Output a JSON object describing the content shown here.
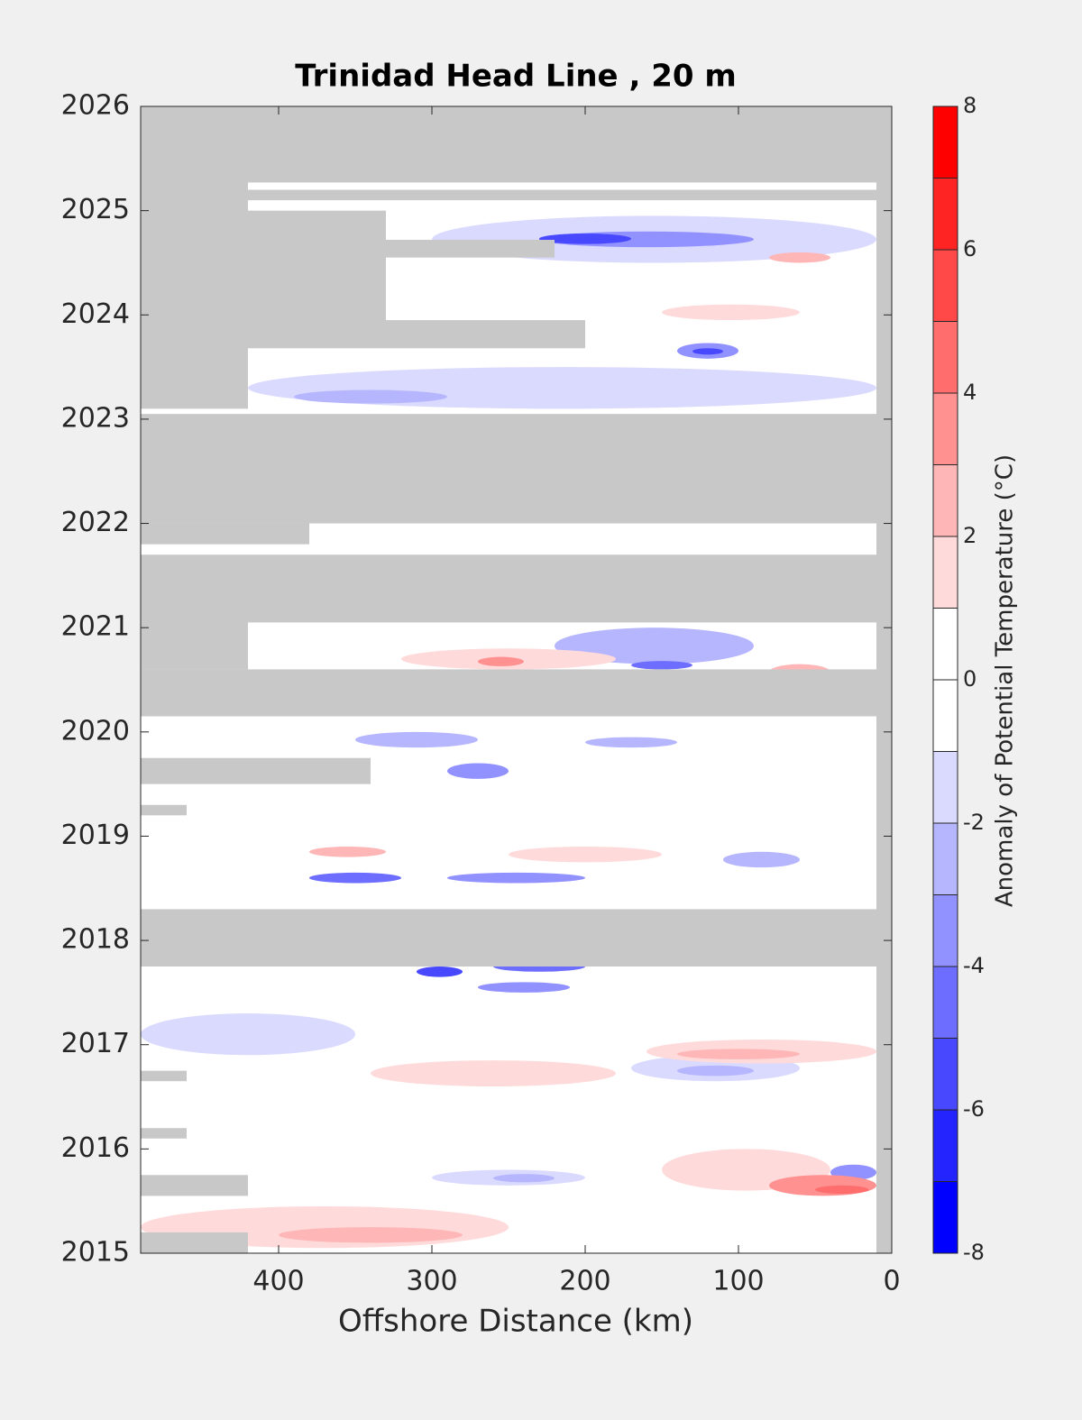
{
  "chart_data": {
    "type": "contour",
    "title": "Trinidad Head Line , 20 m",
    "xlabel": "Offshore Distance (km)",
    "xlim": [
      490,
      0
    ],
    "xticks": [
      400,
      300,
      200,
      100,
      0
    ],
    "ylim": [
      2015,
      2026
    ],
    "yticks": [
      2015,
      2016,
      2017,
      2018,
      2019,
      2020,
      2021,
      2022,
      2023,
      2024,
      2025,
      2026
    ],
    "missing_color": "#c8c8c8",
    "colorbar": {
      "label": "Anomaly of Potential Temperature (°C)",
      "levels": [
        -8,
        -7,
        -6,
        -5,
        -4,
        -3,
        -2,
        -1,
        0,
        1,
        2,
        3,
        4,
        5,
        6,
        7,
        8
      ],
      "colors": [
        "#0000ff",
        "#2424ff",
        "#4848ff",
        "#6d6dff",
        "#9191ff",
        "#b6b6ff",
        "#dadaff",
        "#ffffff",
        "#ffffff",
        "#ffdada",
        "#ffb6b6",
        "#ff9191",
        "#ff6d6d",
        "#ff4848",
        "#ff2424",
        "#ff0000"
      ],
      "ticks": [
        -8,
        -6,
        -4,
        -2,
        0,
        2,
        4,
        6,
        8
      ]
    },
    "missing": [
      {
        "x": [
          490,
          0
        ],
        "y": [
          2025.27,
          2026
        ]
      },
      {
        "x": [
          490,
          10
        ],
        "y": [
          2025.1,
          2025.2
        ]
      },
      {
        "x": [
          490,
          420
        ],
        "y": [
          2023.1,
          2025.3
        ]
      },
      {
        "x": [
          420,
          330
        ],
        "y": [
          2023.9,
          2025.0
        ]
      },
      {
        "x": [
          330,
          220
        ],
        "y": [
          2024.55,
          2024.72
        ]
      },
      {
        "x": [
          420,
          200
        ],
        "y": [
          2023.68,
          2023.95
        ]
      },
      {
        "x": [
          490,
          0
        ],
        "y": [
          2022.0,
          2023.05
        ]
      },
      {
        "x": [
          490,
          380
        ],
        "y": [
          2021.8,
          2022.0
        ]
      },
      {
        "x": [
          490,
          0
        ],
        "y": [
          2021.05,
          2021.7
        ]
      },
      {
        "x": [
          490,
          420
        ],
        "y": [
          2020.6,
          2021.1
        ]
      },
      {
        "x": [
          490,
          0
        ],
        "y": [
          2020.15,
          2020.6
        ]
      },
      {
        "x": [
          490,
          340
        ],
        "y": [
          2019.5,
          2019.75
        ]
      },
      {
        "x": [
          490,
          460
        ],
        "y": [
          2019.2,
          2019.3
        ]
      },
      {
        "x": [
          490,
          0
        ],
        "y": [
          2017.75,
          2018.3
        ]
      },
      {
        "x": [
          490,
          460
        ],
        "y": [
          2016.1,
          2016.2
        ]
      },
      {
        "x": [
          490,
          460
        ],
        "y": [
          2016.65,
          2016.75
        ]
      },
      {
        "x": [
          490,
          420
        ],
        "y": [
          2015.55,
          2015.75
        ]
      },
      {
        "x": [
          490,
          420
        ],
        "y": [
          2015.0,
          2015.2
        ]
      },
      {
        "x": [
          10,
          0
        ],
        "y": [
          2015,
          2026
        ]
      }
    ],
    "blobs": [
      {
        "x": [
          420,
          10
        ],
        "y": [
          2023.1,
          2023.5
        ],
        "value": -1.5
      },
      {
        "x": [
          300,
          10
        ],
        "y": [
          2024.5,
          2024.95
        ],
        "value": -1.5
      },
      {
        "x": [
          230,
          90
        ],
        "y": [
          2024.65,
          2024.8
        ],
        "value": -3.5
      },
      {
        "x": [
          230,
          170
        ],
        "y": [
          2024.68,
          2024.78
        ],
        "value": -5
      },
      {
        "x": [
          140,
          100
        ],
        "y": [
          2023.58,
          2023.73
        ],
        "value": -3.5
      },
      {
        "x": [
          130,
          110
        ],
        "y": [
          2023.62,
          2023.68
        ],
        "value": -5
      },
      {
        "x": [
          390,
          290
        ],
        "y": [
          2023.15,
          2023.28
        ],
        "value": -2.5
      },
      {
        "x": [
          220,
          90
        ],
        "y": [
          2020.65,
          2021.0
        ],
        "value": -2.5
      },
      {
        "x": [
          170,
          130
        ],
        "y": [
          2020.6,
          2020.68
        ],
        "value": -4.5
      },
      {
        "x": [
          350,
          270
        ],
        "y": [
          2019.85,
          2020.0
        ],
        "value": -2.5
      },
      {
        "x": [
          200,
          140
        ],
        "y": [
          2019.85,
          2019.95
        ],
        "value": -2.5
      },
      {
        "x": [
          290,
          250
        ],
        "y": [
          2019.55,
          2019.7
        ],
        "value": -3
      },
      {
        "x": [
          110,
          60
        ],
        "y": [
          2018.7,
          2018.85
        ],
        "value": -2.5
      },
      {
        "x": [
          380,
          320
        ],
        "y": [
          2018.55,
          2018.65
        ],
        "value": -4
      },
      {
        "x": [
          290,
          200
        ],
        "y": [
          2018.55,
          2018.65
        ],
        "value": -3
      },
      {
        "x": [
          310,
          280
        ],
        "y": [
          2017.65,
          2017.75
        ],
        "value": -5
      },
      {
        "x": [
          260,
          200
        ],
        "y": [
          2017.7,
          2017.8
        ],
        "value": -4
      },
      {
        "x": [
          270,
          210
        ],
        "y": [
          2017.5,
          2017.6
        ],
        "value": -3.5
      },
      {
        "x": [
          490,
          350
        ],
        "y": [
          2016.9,
          2017.3
        ],
        "value": -1.5
      },
      {
        "x": [
          170,
          60
        ],
        "y": [
          2016.65,
          2016.9
        ],
        "value": -1.5
      },
      {
        "x": [
          140,
          90
        ],
        "y": [
          2016.7,
          2016.8
        ],
        "value": -2.5
      },
      {
        "x": [
          300,
          200
        ],
        "y": [
          2015.65,
          2015.8
        ],
        "value": -1.5
      },
      {
        "x": [
          260,
          220
        ],
        "y": [
          2015.68,
          2015.76
        ],
        "value": -2.5
      },
      {
        "x": [
          40,
          10
        ],
        "y": [
          2015.7,
          2015.85
        ],
        "value": -3
      },
      {
        "x": [
          160,
          10
        ],
        "y": [
          2016.82,
          2017.05
        ],
        "value": 1.5
      },
      {
        "x": [
          140,
          60
        ],
        "y": [
          2016.86,
          2016.96
        ],
        "value": 2.5
      },
      {
        "x": [
          150,
          40
        ],
        "y": [
          2015.6,
          2016.0
        ],
        "value": 1.5
      },
      {
        "x": [
          80,
          10
        ],
        "y": [
          2015.55,
          2015.75
        ],
        "value": 3.5
      },
      {
        "x": [
          50,
          15
        ],
        "y": [
          2015.57,
          2015.65
        ],
        "value": 5
      },
      {
        "x": [
          490,
          250
        ],
        "y": [
          2015.05,
          2015.45
        ],
        "value": 1.5
      },
      {
        "x": [
          400,
          280
        ],
        "y": [
          2015.1,
          2015.25
        ],
        "value": 2.5
      },
      {
        "x": [
          340,
          180
        ],
        "y": [
          2016.6,
          2016.85
        ],
        "value": 1.5
      },
      {
        "x": [
          380,
          330
        ],
        "y": [
          2018.8,
          2018.9
        ],
        "value": 3
      },
      {
        "x": [
          250,
          150
        ],
        "y": [
          2018.75,
          2018.9
        ],
        "value": 2
      },
      {
        "x": [
          320,
          180
        ],
        "y": [
          2020.6,
          2020.8
        ],
        "value": 1.5
      },
      {
        "x": [
          270,
          240
        ],
        "y": [
          2020.63,
          2020.72
        ],
        "value": 4
      },
      {
        "x": [
          80,
          40
        ],
        "y": [
          2020.5,
          2020.65
        ],
        "value": 2.5
      },
      {
        "x": [
          150,
          60
        ],
        "y": [
          2023.95,
          2024.1
        ],
        "value": 1.5
      },
      {
        "x": [
          80,
          40
        ],
        "y": [
          2024.5,
          2024.6
        ],
        "value": 2.5
      }
    ]
  }
}
